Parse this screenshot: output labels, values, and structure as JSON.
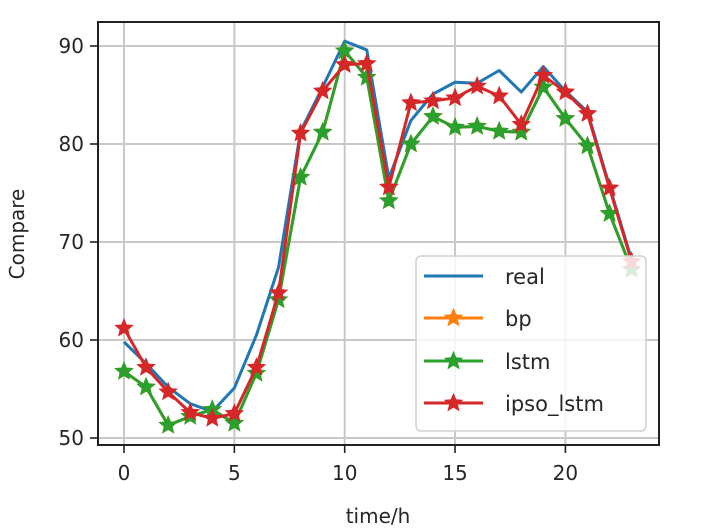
{
  "chart_data": {
    "type": "line",
    "title": "",
    "xlabel": "time/h",
    "ylabel": "Compare",
    "xlim": [
      -1.2,
      24.2
    ],
    "ylim": [
      49.2,
      92.5
    ],
    "xticks": [
      0,
      5,
      10,
      15,
      20
    ],
    "yticks": [
      50,
      60,
      70,
      80,
      90
    ],
    "grid": true,
    "legend_position": "lower right",
    "x": [
      0,
      1,
      2,
      3,
      4,
      5,
      6,
      7,
      8,
      9,
      10,
      11,
      12,
      13,
      14,
      15,
      16,
      17,
      18,
      19,
      20,
      21,
      22,
      23
    ],
    "series": [
      {
        "name": "real",
        "color": "#1f77b4",
        "marker": "none",
        "values": [
          59.8,
          57.6,
          55.2,
          53.5,
          52.7,
          55.1,
          60.5,
          67.4,
          81.3,
          85.8,
          90.5,
          89.6,
          76.5,
          82.4,
          85.1,
          86.3,
          86.2,
          87.5,
          85.3,
          87.9,
          85.4,
          83.3,
          75.7,
          68.2
        ]
      },
      {
        "name": "bp",
        "color": "#ff7f0e",
        "marker": "star",
        "values": [
          56.8,
          55.2,
          51.3,
          52.2,
          52.9,
          51.5,
          56.6,
          64.1,
          76.6,
          81.2,
          89.5,
          86.8,
          74.2,
          80.0,
          82.8,
          81.7,
          81.8,
          81.3,
          81.2,
          85.8,
          82.6,
          79.8,
          72.9,
          67.2
        ]
      },
      {
        "name": "lstm",
        "color": "#2ca02c",
        "marker": "star",
        "values": [
          56.8,
          55.2,
          51.3,
          52.2,
          52.9,
          51.5,
          56.6,
          64.1,
          76.6,
          81.2,
          89.5,
          86.8,
          74.2,
          80.0,
          82.8,
          81.7,
          81.8,
          81.3,
          81.2,
          85.8,
          82.6,
          79.8,
          72.9,
          67.2
        ]
      },
      {
        "name": "ipso_lstm",
        "color": "#d62728",
        "marker": "star",
        "values": [
          61.2,
          57.2,
          54.7,
          52.6,
          52.0,
          52.5,
          57.2,
          64.8,
          81.1,
          85.4,
          88.1,
          88.2,
          75.6,
          84.2,
          84.4,
          84.7,
          85.9,
          84.9,
          82.0,
          87.0,
          85.3,
          83.1,
          75.5,
          68.0
        ]
      }
    ]
  },
  "axes": {
    "x_tick_labels": [
      "0",
      "5",
      "10",
      "15",
      "20"
    ],
    "y_tick_labels": [
      "50",
      "60",
      "70",
      "80",
      "90"
    ]
  },
  "legend": {
    "items": [
      {
        "label": "real"
      },
      {
        "label": "bp"
      },
      {
        "label": "lstm"
      },
      {
        "label": "ipso_lstm"
      }
    ]
  }
}
